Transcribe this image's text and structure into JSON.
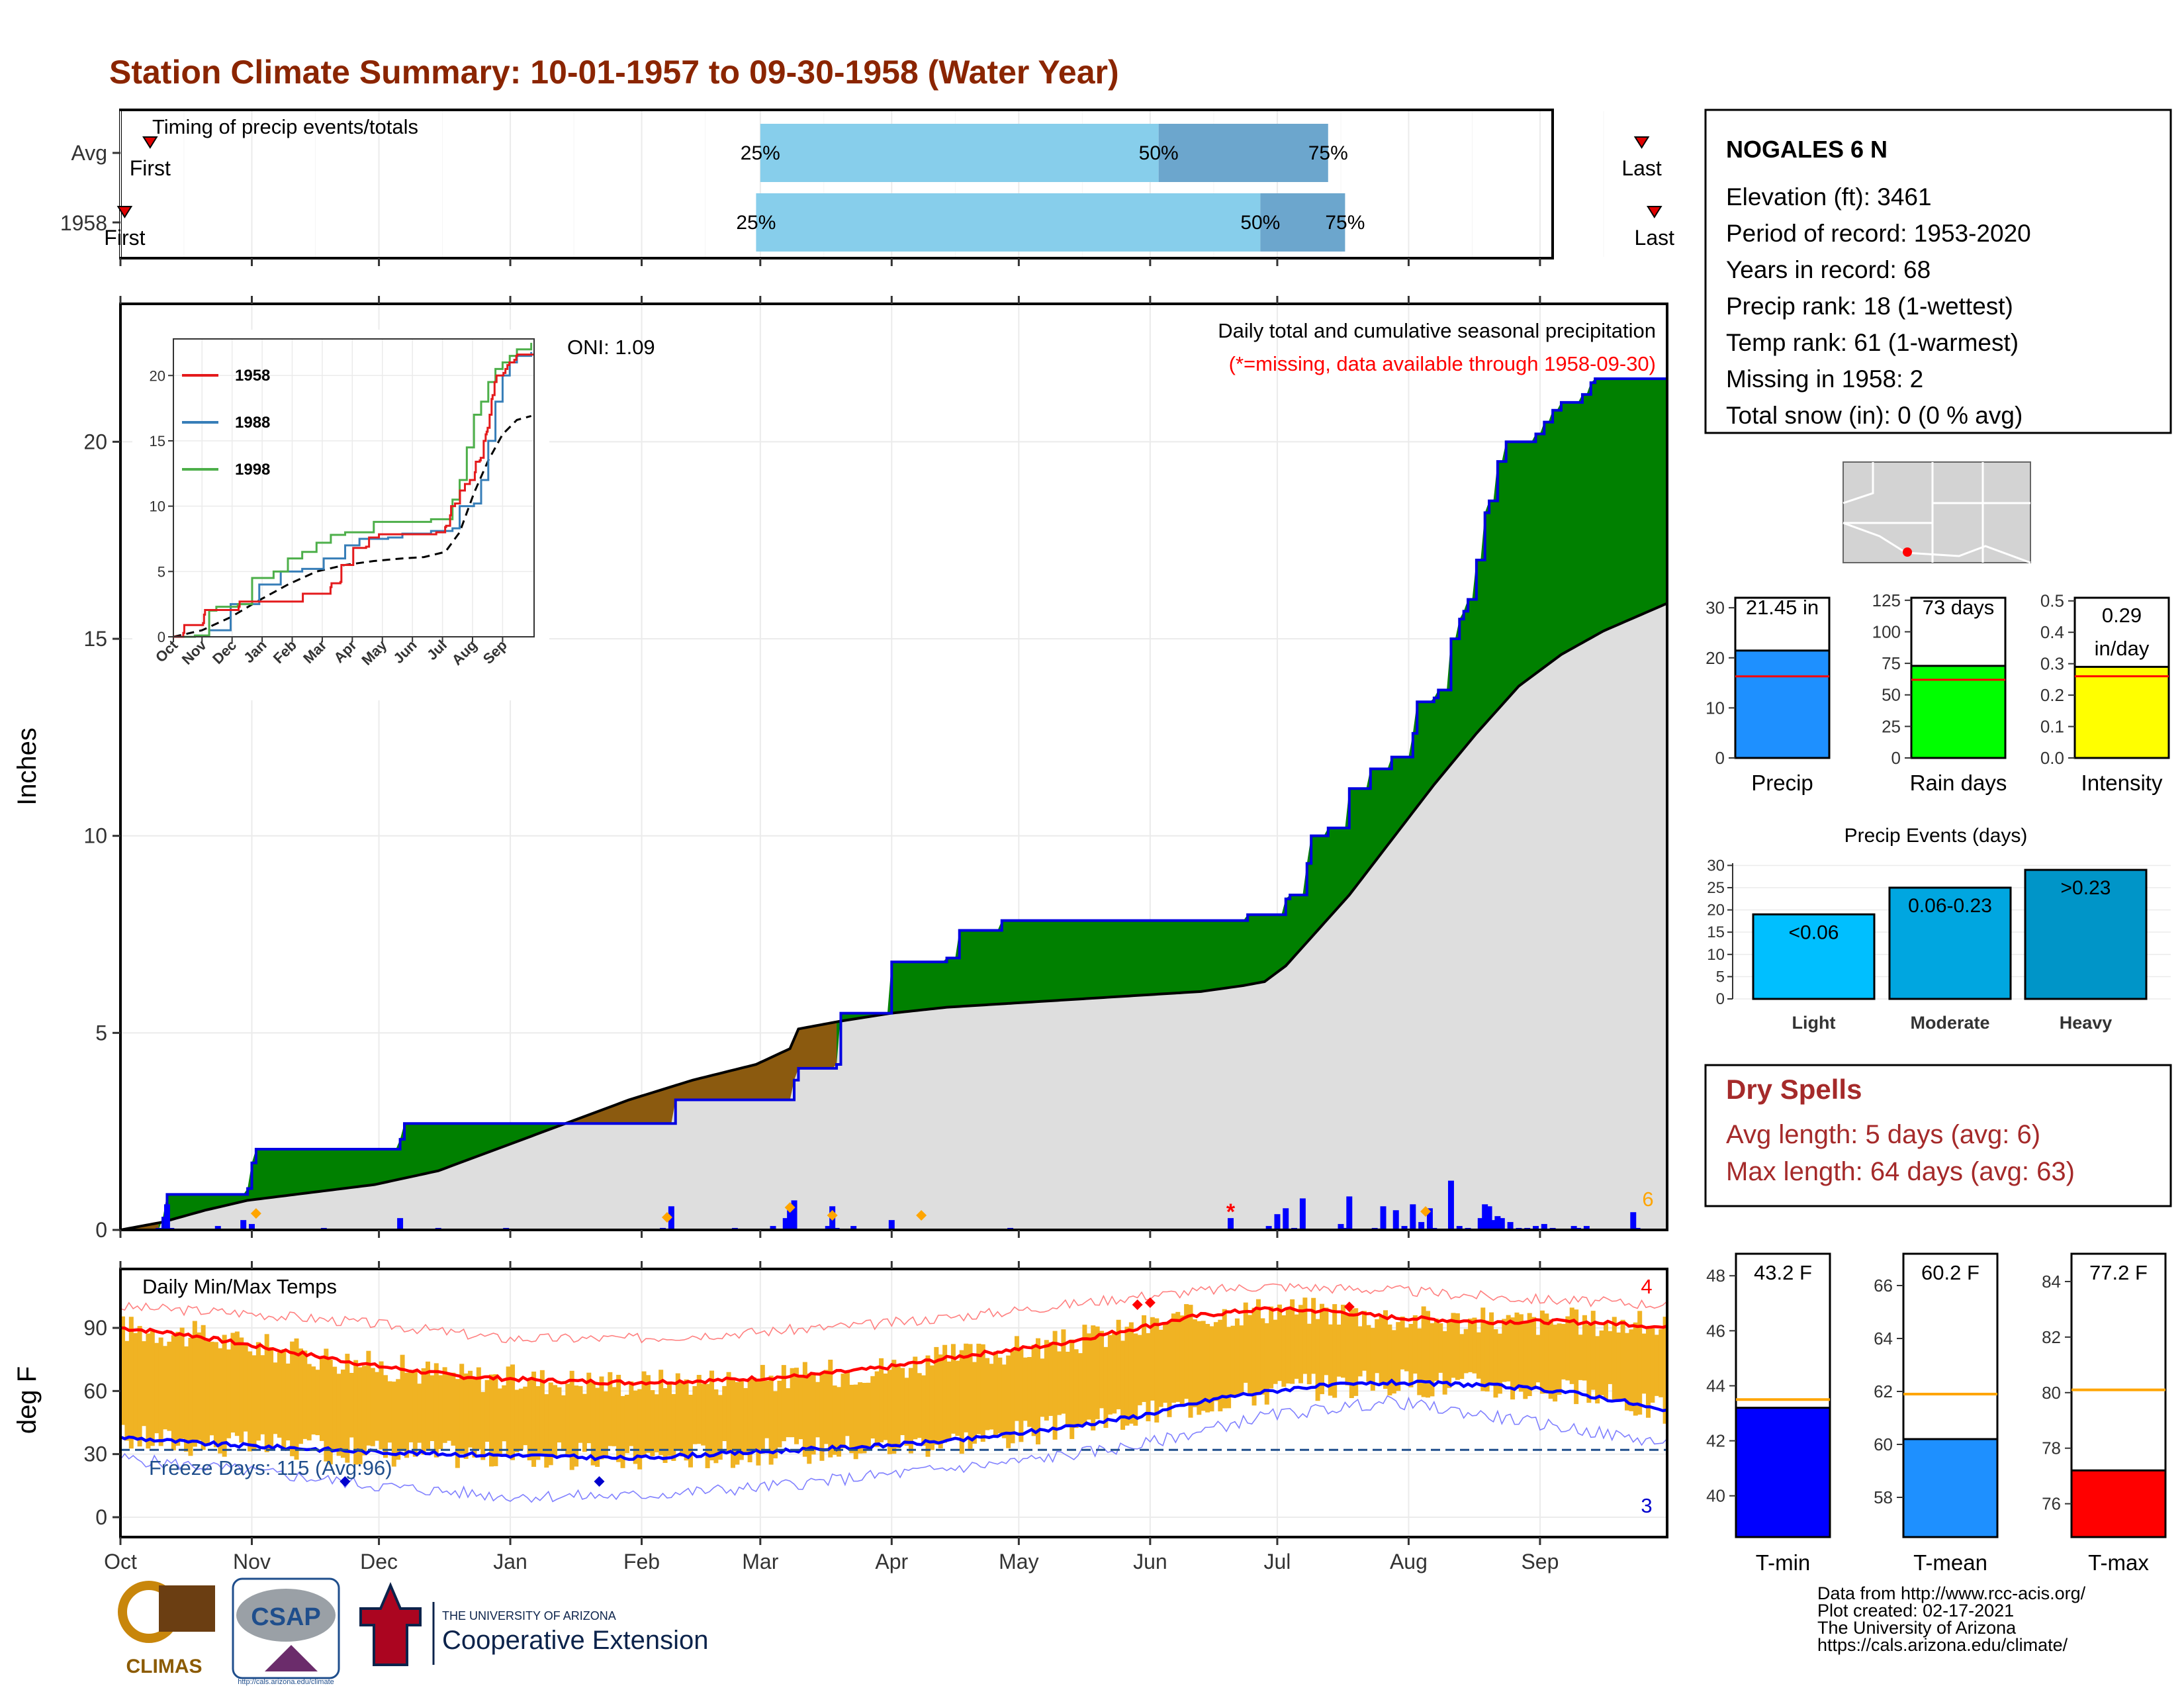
{
  "title": "Station Climate Summary: 10-01-1957 to 09-30-1958 (Water Year)",
  "months": [
    "Oct",
    "Nov",
    "Dec",
    "Jan",
    "Feb",
    "Mar",
    "Apr",
    "May",
    "Jun",
    "Jul",
    "Aug",
    "Sep"
  ],
  "timing": {
    "title": "Timing of precip events/totals",
    "rows": [
      {
        "label": "Avg",
        "first_day": 7,
        "q25_day": 151,
        "q50_day": 245,
        "q75_day": 285,
        "last_day": 359
      },
      {
        "label": "1958",
        "first_day": 1,
        "q25_day": 150,
        "q50_day": 269,
        "q75_day": 289,
        "last_day": 362
      }
    ],
    "first_label": "First",
    "last_label": "Last",
    "q25_label": "25%",
    "q50_label": "50%",
    "q75_label": "75%",
    "colors": {
      "early": "#87ceeb",
      "late": "#6ca6cd"
    }
  },
  "precip": {
    "ylabel": "Inches",
    "yticks": [
      0,
      5,
      10,
      15,
      20
    ],
    "ylim": [
      0,
      23.5
    ],
    "label_main": "Daily total and cumulative seasonal precipitation",
    "label_missing": "(*=missing, data available through 1958-09-30)",
    "oni": "ONI: 1.09",
    "missing_count": "6",
    "observed_cumulative": [
      [
        0,
        0
      ],
      [
        10,
        0.3
      ],
      [
        11,
        0.9
      ],
      [
        30,
        1.05
      ],
      [
        31,
        1.7
      ],
      [
        32,
        2.05
      ],
      [
        65,
        2.05
      ],
      [
        66,
        2.3
      ],
      [
        67,
        2.7
      ],
      [
        80,
        2.7
      ],
      [
        130,
        2.7
      ],
      [
        131,
        3.3
      ],
      [
        158,
        3.3
      ],
      [
        159,
        3.8
      ],
      [
        160,
        4.1
      ],
      [
        169,
        4.2
      ],
      [
        170,
        5.5
      ],
      [
        181,
        5.5
      ],
      [
        182,
        6.8
      ],
      [
        195,
        6.9
      ],
      [
        198,
        7.6
      ],
      [
        207,
        7.6
      ],
      [
        208,
        7.85
      ],
      [
        265,
        7.85
      ],
      [
        266,
        8.0
      ],
      [
        275,
        8.4
      ],
      [
        276,
        8.5
      ],
      [
        280,
        9.3
      ],
      [
        281,
        10.0
      ],
      [
        285,
        10.2
      ],
      [
        290,
        11.2
      ],
      [
        295,
        11.7
      ],
      [
        300,
        12.0
      ],
      [
        305,
        12.6
      ],
      [
        306,
        13.4
      ],
      [
        310,
        13.5
      ],
      [
        311,
        13.7
      ],
      [
        314,
        15.0
      ],
      [
        316,
        15.5
      ],
      [
        317,
        15.7
      ],
      [
        318,
        16.0
      ],
      [
        320,
        17.0
      ],
      [
        322,
        18.2
      ],
      [
        323,
        18.5
      ],
      [
        325,
        19.5
      ],
      [
        327,
        20.0
      ],
      [
        329,
        20.0
      ],
      [
        334,
        20.2
      ],
      [
        336,
        20.5
      ],
      [
        338,
        20.8
      ],
      [
        340,
        21.0
      ],
      [
        345,
        21.2
      ],
      [
        347,
        21.5
      ],
      [
        348,
        21.6
      ],
      [
        355,
        21.6
      ],
      [
        365,
        21.6
      ]
    ],
    "avg_cumulative": [
      [
        0,
        0
      ],
      [
        10,
        0.2
      ],
      [
        20,
        0.5
      ],
      [
        30,
        0.75
      ],
      [
        45,
        0.95
      ],
      [
        60,
        1.15
      ],
      [
        75,
        1.5
      ],
      [
        90,
        2.1
      ],
      [
        105,
        2.7
      ],
      [
        120,
        3.3
      ],
      [
        135,
        3.8
      ],
      [
        150,
        4.2
      ],
      [
        158,
        4.6
      ],
      [
        160,
        5.1
      ],
      [
        170,
        5.3
      ],
      [
        182,
        5.5
      ],
      [
        195,
        5.65
      ],
      [
        210,
        5.75
      ],
      [
        225,
        5.85
      ],
      [
        240,
        5.95
      ],
      [
        255,
        6.05
      ],
      [
        265,
        6.2
      ],
      [
        270,
        6.3
      ],
      [
        275,
        6.7
      ],
      [
        280,
        7.3
      ],
      [
        290,
        8.5
      ],
      [
        300,
        9.9
      ],
      [
        310,
        11.3
      ],
      [
        320,
        12.6
      ],
      [
        330,
        13.8
      ],
      [
        340,
        14.6
      ],
      [
        350,
        15.2
      ],
      [
        365,
        15.9
      ]
    ],
    "daily_bars": [
      [
        9,
        0.05
      ],
      [
        11,
        0.65
      ],
      [
        12,
        0.05
      ],
      [
        23,
        0.1
      ],
      [
        29,
        0.25
      ],
      [
        31,
        0.15
      ],
      [
        48,
        0.05
      ],
      [
        66,
        0.3
      ],
      [
        75,
        0.05
      ],
      [
        91,
        0.05
      ],
      [
        128,
        0.05
      ],
      [
        130,
        0.6
      ],
      [
        145,
        0.05
      ],
      [
        154,
        0.1
      ],
      [
        157,
        0.3
      ],
      [
        158,
        0.5
      ],
      [
        159,
        0.75
      ],
      [
        167,
        0.1
      ],
      [
        168,
        0.6
      ],
      [
        169,
        0.05
      ],
      [
        173,
        0.1
      ],
      [
        182,
        0.25
      ],
      [
        210,
        0.05
      ],
      [
        262,
        0.3
      ],
      [
        271,
        0.1
      ],
      [
        273,
        0.4
      ],
      [
        275,
        0.55
      ],
      [
        277,
        0.05
      ],
      [
        279,
        0.8
      ],
      [
        288,
        0.15
      ],
      [
        289,
        0.05
      ],
      [
        290,
        0.85
      ],
      [
        296,
        0.05
      ],
      [
        298,
        0.6
      ],
      [
        301,
        0.5
      ],
      [
        303,
        0.1
      ],
      [
        305,
        0.65
      ],
      [
        307,
        0.2
      ],
      [
        309,
        0.55
      ],
      [
        310,
        0.05
      ],
      [
        314,
        1.25
      ],
      [
        316,
        0.1
      ],
      [
        318,
        0.05
      ],
      [
        321,
        0.3
      ],
      [
        322,
        0.65
      ],
      [
        323,
        0.6
      ],
      [
        324,
        0.25
      ],
      [
        325,
        0.35
      ],
      [
        326,
        0.3
      ],
      [
        328,
        0.2
      ],
      [
        330,
        0.05
      ],
      [
        332,
        0.05
      ],
      [
        334,
        0.1
      ],
      [
        336,
        0.15
      ],
      [
        338,
        0.05
      ],
      [
        343,
        0.1
      ],
      [
        344,
        0.05
      ],
      [
        346,
        0.1
      ],
      [
        357,
        0.45
      ],
      [
        358,
        0.05
      ]
    ],
    "record_markers": [
      32,
      129,
      158,
      168,
      189,
      308
    ],
    "missing_markers": [
      262
    ],
    "inset": {
      "yticks": [
        0,
        5,
        10,
        15,
        20
      ],
      "series": [
        {
          "name": "1958",
          "color": "#e41a1c"
        },
        {
          "name": "1988",
          "color": "#377eb8"
        },
        {
          "name": "1998",
          "color": "#4daf4a"
        }
      ],
      "s1988": [
        [
          0,
          0
        ],
        [
          15,
          0.1
        ],
        [
          25,
          0.5
        ],
        [
          40,
          2.5
        ],
        [
          60,
          4.0
        ],
        [
          75,
          5.0
        ],
        [
          90,
          5.2
        ],
        [
          105,
          6.0
        ],
        [
          120,
          7.0
        ],
        [
          130,
          7.5
        ],
        [
          150,
          7.6
        ],
        [
          160,
          7.9
        ],
        [
          180,
          8.1
        ],
        [
          195,
          8.3
        ],
        [
          200,
          10.0
        ],
        [
          210,
          10.2
        ],
        [
          215,
          12.0
        ],
        [
          220,
          15.0
        ],
        [
          225,
          18.0
        ],
        [
          230,
          20.0
        ],
        [
          235,
          21.0
        ],
        [
          240,
          21.5
        ],
        [
          250,
          21.8
        ]
      ],
      "s1998": [
        [
          0,
          0
        ],
        [
          15,
          0.1
        ],
        [
          25,
          2.0
        ],
        [
          30,
          2.3
        ],
        [
          45,
          2.5
        ],
        [
          55,
          4.5
        ],
        [
          70,
          5.0
        ],
        [
          80,
          6.0
        ],
        [
          90,
          6.5
        ],
        [
          100,
          7.2
        ],
        [
          110,
          7.8
        ],
        [
          120,
          8.0
        ],
        [
          140,
          8.8
        ],
        [
          160,
          8.8
        ],
        [
          180,
          9.0
        ],
        [
          190,
          9.0
        ],
        [
          195,
          10.5
        ],
        [
          200,
          12.0
        ],
        [
          205,
          14.5
        ],
        [
          210,
          17.0
        ],
        [
          215,
          18.0
        ],
        [
          220,
          19.5
        ],
        [
          225,
          20.5
        ],
        [
          230,
          21.0
        ],
        [
          235,
          21.5
        ],
        [
          240,
          22.0
        ],
        [
          250,
          22.5
        ]
      ],
      "avg": [
        [
          0,
          0
        ],
        [
          20,
          0.5
        ],
        [
          40,
          1.5
        ],
        [
          60,
          2.8
        ],
        [
          80,
          4.0
        ],
        [
          100,
          5.0
        ],
        [
          120,
          5.5
        ],
        [
          140,
          5.8
        ],
        [
          160,
          6.0
        ],
        [
          175,
          6.1
        ],
        [
          190,
          6.5
        ],
        [
          200,
          8.0
        ],
        [
          210,
          11.0
        ],
        [
          220,
          13.5
        ],
        [
          230,
          15.5
        ],
        [
          240,
          16.6
        ],
        [
          250,
          16.9
        ]
      ]
    }
  },
  "temps": {
    "title": "Daily Min/Max Temps",
    "ylabel": "deg F",
    "yticks": [
      0,
      30,
      60,
      90
    ],
    "freeze": "Freeze Days: 115 (Avg:96)",
    "max_record_count": "4",
    "min_record_count": "3",
    "avg_max": [
      [
        0,
        90
      ],
      [
        15,
        87
      ],
      [
        30,
        82
      ],
      [
        45,
        77
      ],
      [
        60,
        72
      ],
      [
        80,
        67
      ],
      [
        100,
        65
      ],
      [
        120,
        64
      ],
      [
        140,
        65
      ],
      [
        160,
        67
      ],
      [
        180,
        71
      ],
      [
        200,
        77
      ],
      [
        220,
        82
      ],
      [
        240,
        90
      ],
      [
        255,
        96
      ],
      [
        270,
        99
      ],
      [
        285,
        98
      ],
      [
        300,
        95
      ],
      [
        320,
        93
      ],
      [
        340,
        93
      ],
      [
        355,
        92
      ],
      [
        365,
        90
      ]
    ],
    "avg_min": [
      [
        0,
        38
      ],
      [
        20,
        35
      ],
      [
        40,
        33
      ],
      [
        60,
        31
      ],
      [
        80,
        30
      ],
      [
        100,
        29
      ],
      [
        120,
        28
      ],
      [
        140,
        30
      ],
      [
        160,
        32
      ],
      [
        180,
        34
      ],
      [
        200,
        37
      ],
      [
        220,
        42
      ],
      [
        240,
        48
      ],
      [
        260,
        57
      ],
      [
        280,
        62
      ],
      [
        300,
        64
      ],
      [
        320,
        63
      ],
      [
        340,
        60
      ],
      [
        355,
        55
      ],
      [
        365,
        50
      ]
    ],
    "rec_max": [
      [
        0,
        100
      ],
      [
        30,
        97
      ],
      [
        60,
        92
      ],
      [
        90,
        85
      ],
      [
        120,
        85
      ],
      [
        150,
        88
      ],
      [
        180,
        92
      ],
      [
        210,
        98
      ],
      [
        240,
        105
      ],
      [
        270,
        110
      ],
      [
        300,
        108
      ],
      [
        330,
        104
      ],
      [
        365,
        101
      ]
    ],
    "rec_min": [
      [
        0,
        28
      ],
      [
        30,
        22
      ],
      [
        60,
        15
      ],
      [
        90,
        10
      ],
      [
        120,
        10
      ],
      [
        150,
        14
      ],
      [
        180,
        20
      ],
      [
        210,
        26
      ],
      [
        240,
        34
      ],
      [
        270,
        48
      ],
      [
        300,
        55
      ],
      [
        330,
        46
      ],
      [
        365,
        35
      ]
    ]
  },
  "station": {
    "name": "NOGALES 6 N",
    "lines": [
      "Elevation (ft): 3461",
      "Period of record: 1953-2020",
      "Years in record: 68",
      "Precip rank: 18 (1-wettest)",
      "Temp rank: 61 (1-warmest)",
      "Missing in 1958: 2",
      "Total snow (in): 0 (0 % avg)"
    ]
  },
  "summary_bars": [
    {
      "label": "Precip",
      "value": 21.45,
      "value_label": "21.45 in",
      "avg": 16.3,
      "ylim": [
        0,
        32
      ],
      "yticks": [
        0,
        10,
        20,
        30
      ],
      "color": "#1e90ff"
    },
    {
      "label": "Rain days",
      "value": 73,
      "value_label": "73 days",
      "avg": 62,
      "ylim": [
        0,
        127
      ],
      "yticks": [
        0,
        25,
        50,
        75,
        100,
        125
      ],
      "color": "#00ff00"
    },
    {
      "label": "Intensity",
      "value": 0.29,
      "value_label": "0.29 in/day",
      "avg": 0.26,
      "ylim": [
        0,
        0.51
      ],
      "yticks": [
        0.0,
        0.1,
        0.2,
        0.3,
        0.4,
        0.5
      ],
      "color": "#ffff00"
    }
  ],
  "events": {
    "title": "Precip Events (days)",
    "ylim": [
      0,
      30.5
    ],
    "yticks": [
      0,
      5,
      10,
      15,
      20,
      25,
      30
    ],
    "bars": [
      {
        "label": "Light",
        "value": 19,
        "value_label": "<0.06",
        "color": "#00bfff"
      },
      {
        "label": "Moderate",
        "value": 25,
        "value_label": "0.06-0.23",
        "color": "#00a6e0"
      },
      {
        "label": "Heavy",
        "value": 29,
        "value_label": ">0.23",
        "color": "#0095c8"
      }
    ]
  },
  "dry": {
    "title": "Dry Spells",
    "avg": "Avg length: 5 days (avg: 6)",
    "max": "Max length: 64 days (avg: 63)"
  },
  "temp_bars": [
    {
      "label": "T-min",
      "value": 43.2,
      "value_label": "43.2 F",
      "avg": 43.5,
      "ylim": [
        38.5,
        48.8
      ],
      "yticks": [
        40,
        42,
        44,
        46,
        48
      ],
      "color": "#0000ff"
    },
    {
      "label": "T-mean",
      "value": 60.2,
      "value_label": "60.2 F",
      "avg": 61.9,
      "ylim": [
        56.5,
        67.2
      ],
      "yticks": [
        58,
        60,
        62,
        64,
        66
      ],
      "color": "#1e90ff"
    },
    {
      "label": "T-max",
      "value": 77.2,
      "value_label": "77.2 F",
      "avg": 80.1,
      "ylim": [
        74.8,
        85.0
      ],
      "yticks": [
        76,
        78,
        80,
        82,
        84
      ],
      "color": "#ff0000"
    }
  ],
  "footer": {
    "logos": [
      "CLIMAS",
      "CSAP",
      "http://cals.arizona.edu/climate"
    ],
    "ua_small": "THE UNIVERSITY OF ARIZONA",
    "ua_big": "Cooperative Extension",
    "credits": [
      "Data from http://www.rcc-acis.org/",
      "Plot created: 02-17-2021",
      "The University of Arizona",
      "https://cals.arizona.edu/climate/"
    ]
  }
}
